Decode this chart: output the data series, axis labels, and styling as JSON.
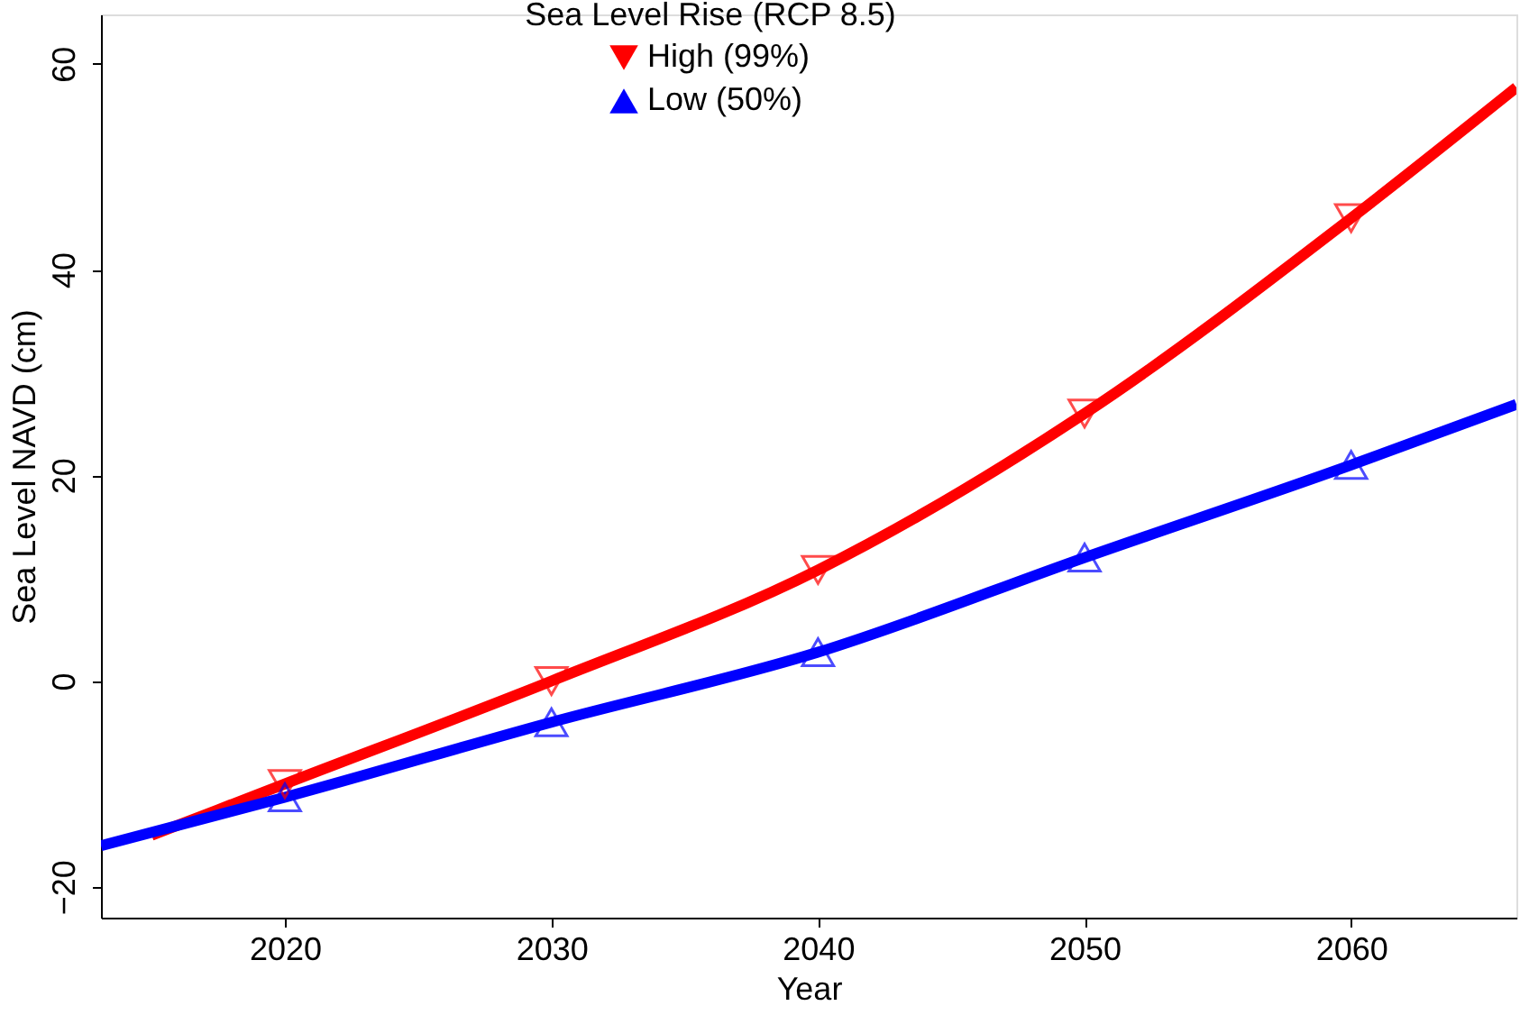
{
  "chart_data": {
    "type": "line",
    "xlabel": "Year",
    "ylabel": "Sea Level NAVD (cm)",
    "legend_title": "Sea Level Rise (RCP 8.5)",
    "legend": "top",
    "xlim": [
      2013.1,
      2066.2
    ],
    "xticks": [
      2020,
      2030,
      2040,
      2050,
      2060
    ],
    "ylim": [
      -23,
      64.8
    ],
    "yticks": [
      -20,
      0,
      20,
      40,
      60
    ],
    "grid": false,
    "series": [
      {
        "name": "High (99%)",
        "color": "#ff0000",
        "x": [
          2015,
          2020,
          2030,
          2040,
          2050,
          2060,
          2066.2
        ],
        "values": [
          -15,
          -10,
          0,
          10.8,
          26,
          45,
          57.7
        ],
        "marker": "none",
        "line_style": "solid"
      },
      {
        "name": "Low  (50%)",
        "color": "#0000ff",
        "x": [
          2013.1,
          2020,
          2030,
          2040,
          2050,
          2060,
          2066.2
        ],
        "values": [
          -16,
          -11.3,
          -4,
          2.8,
          12,
          21,
          26.9
        ],
        "marker": "none",
        "line_style": "solid"
      },
      {
        "type": "scatter",
        "color": "#ff0000",
        "x": [
          2020,
          2030,
          2040,
          2050,
          2060
        ],
        "values": [
          -10,
          0,
          10.8,
          26,
          45
        ],
        "marker": "triangle-down"
      },
      {
        "type": "scatter",
        "color": "#0000ff",
        "x": [
          2020,
          2030,
          2040,
          2050,
          2060
        ],
        "values": [
          -11.3,
          -4,
          2.8,
          12,
          21
        ],
        "marker": "triangle"
      }
    ]
  }
}
